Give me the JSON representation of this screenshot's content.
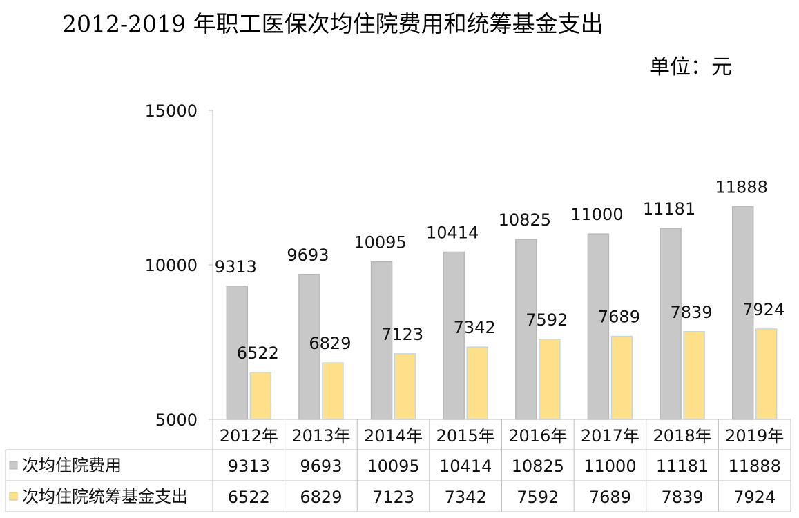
{
  "chart_data": {
    "type": "bar",
    "title": "2012-2019 年职工医保次均住院费用和统筹基金支出",
    "unit_label": "单位：元",
    "categories": [
      "2012年",
      "2013年",
      "2014年",
      "2015年",
      "2016年",
      "2017年",
      "2018年",
      "2019年"
    ],
    "series": [
      {
        "name": "次均住院费用",
        "color": "#c8c8c8",
        "values": [
          9313,
          9693,
          10095,
          10414,
          10825,
          11000,
          11181,
          11888
        ]
      },
      {
        "name": "次均住院统筹基金支出",
        "color": "#ffe08a",
        "values": [
          6522,
          6829,
          7123,
          7342,
          7592,
          7689,
          7839,
          7924
        ]
      }
    ],
    "yticks": [
      5000,
      10000,
      15000
    ],
    "ylim": [
      5000,
      15000
    ],
    "xlabel": "",
    "ylabel": "",
    "data_table": true
  }
}
